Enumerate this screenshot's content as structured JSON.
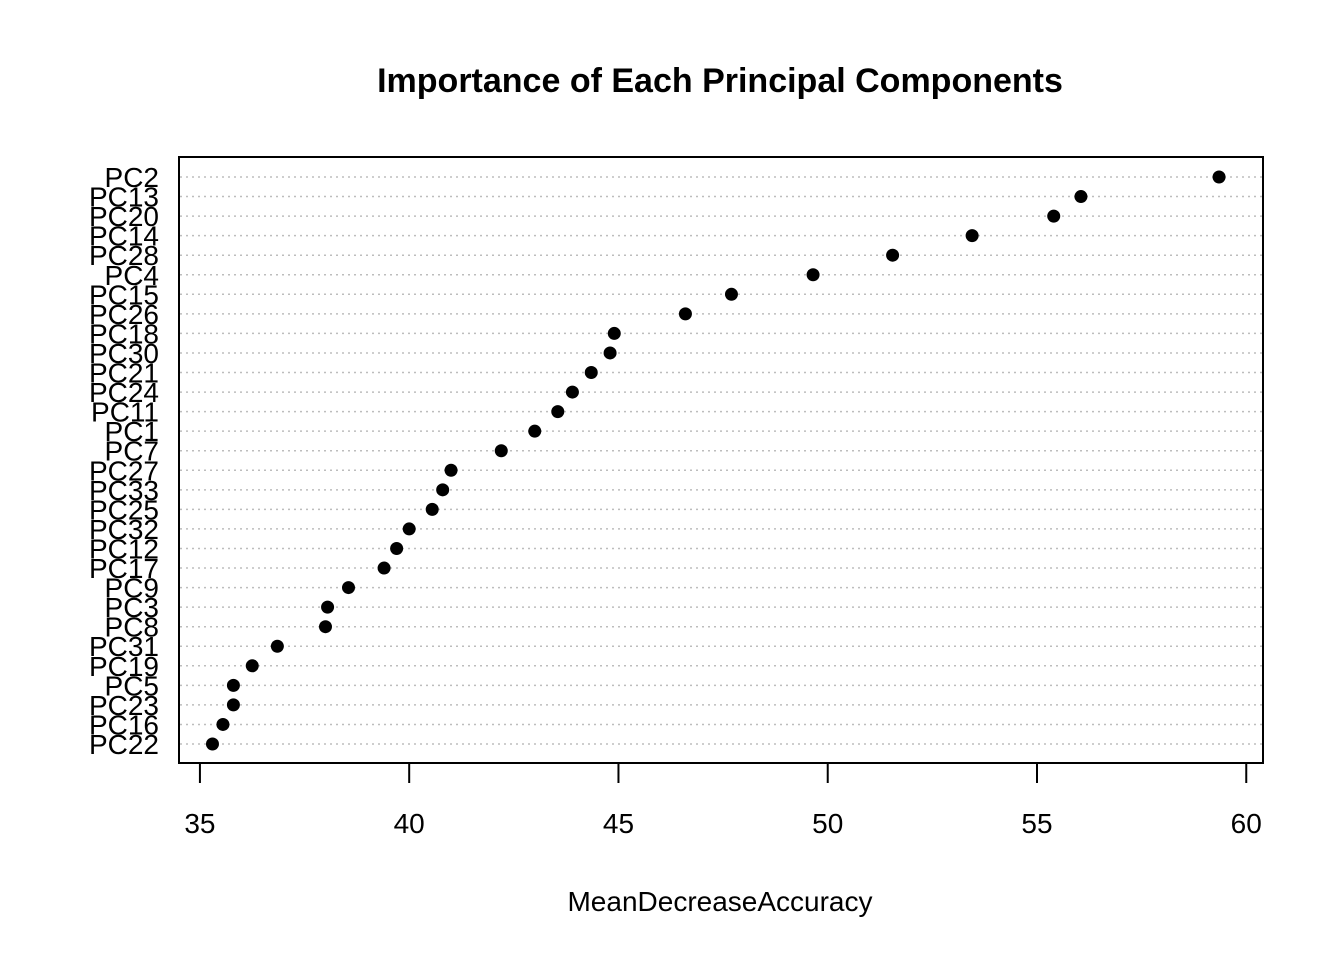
{
  "chart_data": {
    "type": "scatter",
    "title": "Importance of Each Principal Components",
    "xlabel": "MeanDecreaseAccuracy",
    "ylabel": "",
    "xlim": [
      34.5,
      60.4
    ],
    "xticks": [
      35,
      40,
      45,
      50,
      55,
      60
    ],
    "grid": "horizontal dotted",
    "categories": [
      "PC2",
      "PC13",
      "PC20",
      "PC14",
      "PC28",
      "PC4",
      "PC15",
      "PC26",
      "PC18",
      "PC30",
      "PC21",
      "PC24",
      "PC11",
      "PC1",
      "PC7",
      "PC27",
      "PC33",
      "PC25",
      "PC32",
      "PC12",
      "PC17",
      "PC9",
      "PC3",
      "PC8",
      "PC31",
      "PC19",
      "PC5",
      "PC23",
      "PC16",
      "PC22"
    ],
    "values": [
      59.35,
      56.05,
      55.4,
      53.45,
      51.55,
      49.65,
      47.7,
      46.6,
      44.9,
      44.8,
      44.35,
      43.9,
      43.55,
      43.0,
      42.2,
      41.0,
      40.8,
      40.55,
      40.0,
      39.7,
      39.4,
      38.55,
      38.05,
      38.0,
      36.85,
      36.25,
      35.8,
      35.8,
      35.55,
      35.3
    ],
    "point_color": "#000000"
  }
}
